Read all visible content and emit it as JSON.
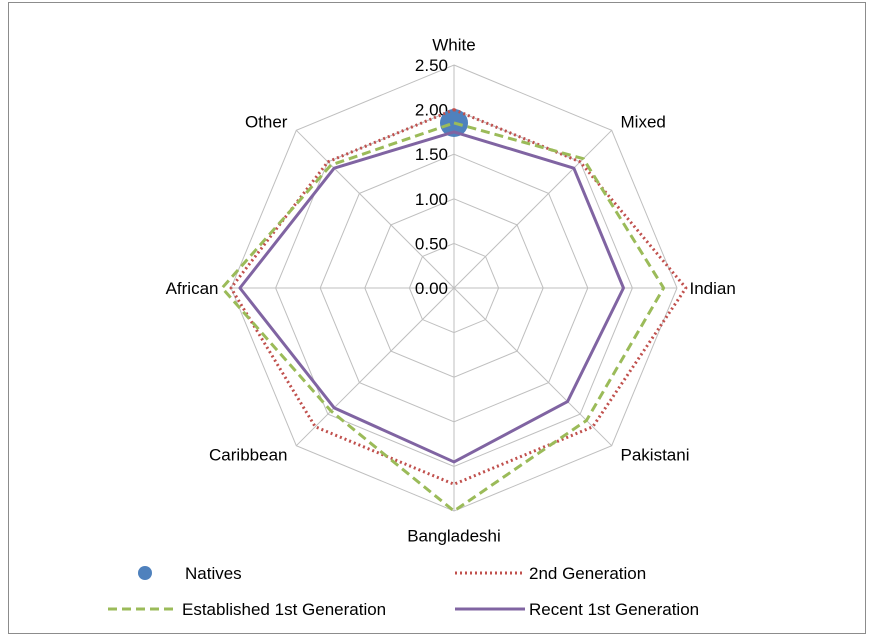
{
  "chart_data": {
    "type": "radar",
    "categories": [
      "White",
      "Mixed",
      "Indian",
      "Pakistani",
      "Bangladeshi",
      "Caribbean",
      "African",
      "Other"
    ],
    "radial_ticks": [
      "0.00",
      "0.50",
      "1.00",
      "1.50",
      "2.00",
      "2.50"
    ],
    "rlim": [
      0,
      2.5
    ],
    "grid": true,
    "legend_position": "bottom",
    "series": [
      {
        "name": "Natives",
        "style": "dot",
        "color": "#4f81bd",
        "values": [
          1.85,
          null,
          null,
          null,
          null,
          null,
          null,
          null
        ]
      },
      {
        "name": "2nd Generation",
        "style": "dotted",
        "color": "#c0504d",
        "values": [
          2.0,
          2.0,
          2.6,
          2.2,
          2.2,
          2.2,
          2.5,
          2.0
        ]
      },
      {
        "name": "Established 1st Generation",
        "style": "dashed",
        "color": "#9bbb59",
        "values": [
          1.85,
          2.05,
          2.35,
          2.1,
          2.5,
          1.95,
          2.6,
          1.95
        ]
      },
      {
        "name": "Recent 1st Generation",
        "style": "solid",
        "color": "#8064a2",
        "values": [
          1.75,
          1.9,
          1.9,
          1.8,
          1.95,
          1.9,
          2.4,
          1.9
        ]
      }
    ]
  }
}
